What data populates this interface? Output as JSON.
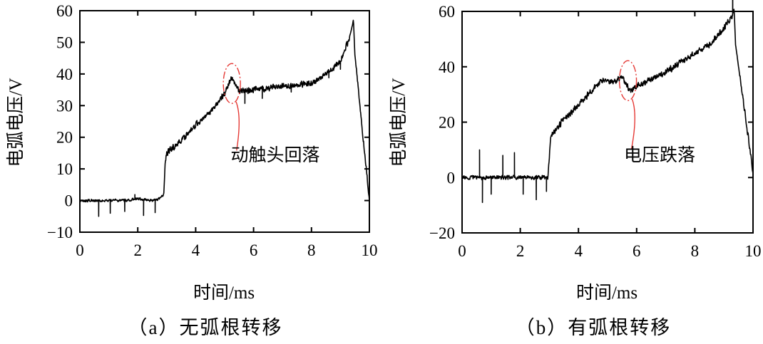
{
  "figure": {
    "colors": {
      "axis": "#000000",
      "series": "#000000",
      "annotation": "#e53935",
      "background": "#ffffff"
    }
  },
  "chart_data": [
    {
      "id": "a",
      "type": "line",
      "caption": "（a）无弧根转移",
      "xlabel": "时间/ms",
      "ylabel": "电弧电压/V",
      "xlim": [
        0,
        10
      ],
      "ylim": [
        -10,
        60
      ],
      "xticks": [
        0,
        2,
        4,
        6,
        8,
        10
      ],
      "yticks": [
        -10,
        0,
        10,
        20,
        30,
        40,
        50,
        60
      ],
      "xtick_labels": [
        "0",
        "2",
        "4",
        "6",
        "8",
        "10"
      ],
      "ytick_labels": [
        "−10",
        "0",
        "10",
        "20",
        "30",
        "40",
        "50",
        "60"
      ],
      "grid": false,
      "annotation": {
        "text": "动触头回落",
        "x": 5.25,
        "y": 37,
        "label_x": 6.3,
        "label_y": 14
      },
      "series": [
        {
          "name": "电弧电压",
          "x": [
            0,
            0.5,
            1.0,
            1.5,
            2.0,
            2.5,
            2.75,
            2.9,
            2.95,
            3.0,
            3.5,
            4.0,
            4.5,
            5.0,
            5.25,
            5.5,
            6.0,
            7.0,
            8.0,
            8.5,
            9.0,
            9.3,
            9.45,
            9.5,
            10.0
          ],
          "values": [
            0,
            0,
            0,
            0,
            0.5,
            0,
            0.5,
            2,
            13,
            15,
            19,
            24,
            28,
            34,
            39,
            34.5,
            35,
            36,
            37,
            40,
            44,
            51,
            57,
            46,
            0
          ]
        }
      ],
      "noise": {
        "amplitude": 1.1,
        "baseline_amplitude": 0.5,
        "spikes": [
          [
            0.65,
            -5
          ],
          [
            1.05,
            -4
          ],
          [
            1.55,
            -3.5
          ],
          [
            1.9,
            1.5
          ],
          [
            2.2,
            -5
          ],
          [
            2.6,
            -4
          ],
          [
            5.7,
            -4
          ],
          [
            6.3,
            -3
          ],
          [
            7.3,
            -2
          ],
          [
            8.6,
            -2
          ],
          [
            9.0,
            -2.5
          ]
        ]
      }
    },
    {
      "id": "b",
      "type": "line",
      "caption": "（b）有弧根转移",
      "xlabel": "时间/ms",
      "ylabel": "电弧电压/V",
      "xlim": [
        0,
        10
      ],
      "ylim": [
        -20,
        60
      ],
      "xticks": [
        0,
        2,
        4,
        6,
        8,
        10
      ],
      "yticks": [
        -20,
        0,
        20,
        40,
        60
      ],
      "xtick_labels": [
        "0",
        "2",
        "4",
        "6",
        "8",
        "10"
      ],
      "ytick_labels": [
        "−20",
        "0",
        "20",
        "40",
        "60"
      ],
      "grid": false,
      "annotation": {
        "text": "电压跌落",
        "x": 5.7,
        "y": 35,
        "label_x": 6.7,
        "label_y": 8
      },
      "series": [
        {
          "name": "电弧电压",
          "x": [
            0,
            0.5,
            1.0,
            1.5,
            2.0,
            2.5,
            2.95,
            3.0,
            3.05,
            3.5,
            4.0,
            4.5,
            4.8,
            5.2,
            5.5,
            5.8,
            6.0,
            7.0,
            8.0,
            8.5,
            9.0,
            9.3,
            9.35,
            9.4,
            10.0
          ],
          "values": [
            0,
            0,
            0,
            0,
            0,
            0,
            0,
            8,
            15,
            21,
            26,
            32,
            35,
            34.5,
            36,
            31,
            33,
            38,
            45,
            48,
            54,
            59,
            61,
            48,
            2
          ]
        }
      ],
      "noise": {
        "amplitude": 1.3,
        "baseline_amplitude": 0.9,
        "spikes": [
          [
            0.6,
            10
          ],
          [
            0.7,
            -9
          ],
          [
            1.0,
            -6
          ],
          [
            1.4,
            8
          ],
          [
            1.8,
            9
          ],
          [
            2.1,
            -6
          ],
          [
            2.55,
            -8
          ],
          [
            2.9,
            -5
          ],
          [
            9.3,
            35
          ]
        ]
      }
    }
  ]
}
